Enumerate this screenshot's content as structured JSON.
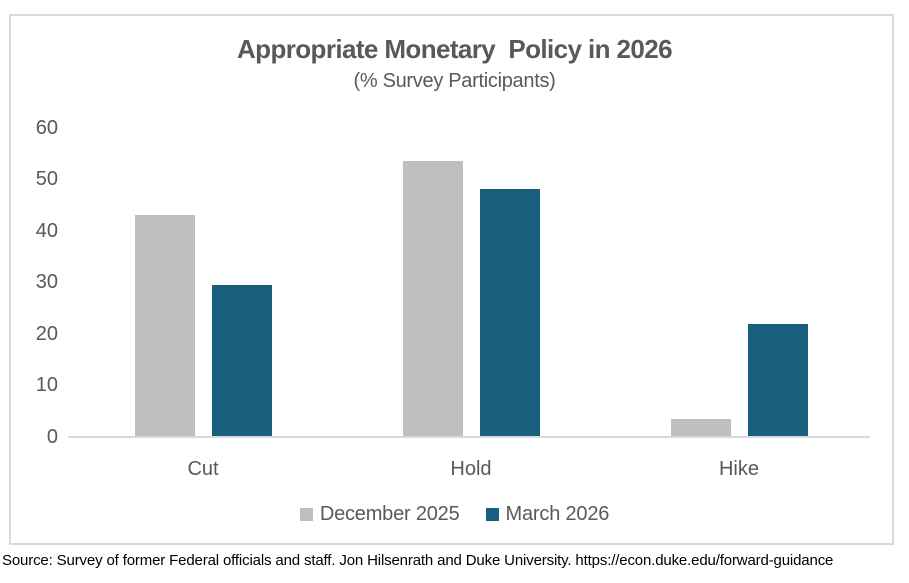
{
  "chart_data": {
    "type": "bar",
    "title": "Appropriate Monetary  Policy in 2026",
    "subtitle": "(% Survey Participants)",
    "categories": [
      "Cut",
      "Hold",
      "Hike"
    ],
    "series": [
      {
        "name": "December 2025",
        "color": "#BFBFBF",
        "values": [
          43,
          53.5,
          3.4
        ]
      },
      {
        "name": "March 2026",
        "color": "#1A607E",
        "values": [
          29.5,
          48,
          22
        ]
      }
    ],
    "ylim": [
      0,
      60
    ],
    "yticks": [
      0,
      10,
      20,
      30,
      40,
      50,
      60
    ],
    "grid": false,
    "legend_position": "bottom"
  },
  "colors": {
    "frame_border": "#D9D9D9",
    "axis_line": "#D9D9D9",
    "text_gray": "#595959",
    "footer_text": "#000000"
  },
  "footer": {
    "source": "Source: Survey of former Federal officials and staff. Jon Hilsenrath and Duke University. https://econ.duke.edu/forward-guidance"
  }
}
